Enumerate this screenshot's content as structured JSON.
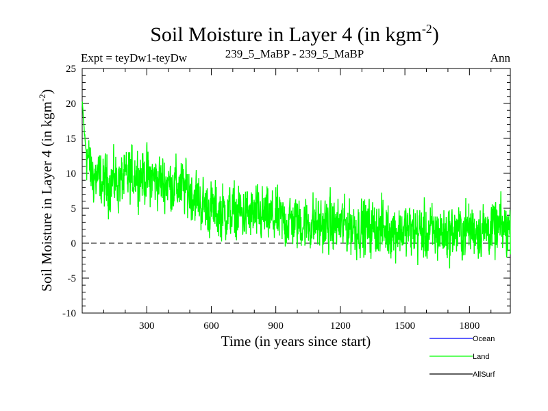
{
  "chart_data": {
    "type": "line",
    "title_main": "Soil Moisture in Layer 4 (in kgm",
    "title_sup": "-2",
    "title_close": ")",
    "expt_label": "Expt = teyDw1-teyDw",
    "subtitle": "239_5_MaBP - 239_5_MaBP",
    "season": "Ann",
    "xlabel": "Time (in years since start)",
    "ylabel_main": "Soil Moisture in Layer 4 (in kgm",
    "ylabel_sup": "-2",
    "ylabel_close": ")",
    "xlim": [
      0,
      1990
    ],
    "ylim": [
      -10,
      25
    ],
    "x_ticks": [
      300,
      600,
      900,
      1200,
      1500,
      1800
    ],
    "x_tick_labels": [
      "300",
      "600",
      "900",
      "1200",
      "1500",
      "1800"
    ],
    "y_ticks": [
      -10,
      -5,
      0,
      5,
      10,
      15,
      20,
      25
    ],
    "y_tick_labels": [
      "-10",
      "-5",
      "0",
      "5",
      "10",
      "15",
      "20",
      "25"
    ],
    "zero_line": 0,
    "trend_points": [
      [
        0,
        20
      ],
      [
        15,
        14
      ],
      [
        40,
        10
      ],
      [
        100,
        8.5
      ],
      [
        200,
        9
      ],
      [
        250,
        10
      ],
      [
        350,
        9
      ],
      [
        500,
        7.5
      ],
      [
        560,
        5.5
      ],
      [
        620,
        4.5
      ],
      [
        800,
        4
      ],
      [
        1000,
        3
      ],
      [
        1200,
        2.5
      ],
      [
        1400,
        2
      ],
      [
        1600,
        1.5
      ],
      [
        1700,
        1.5
      ],
      [
        1800,
        2
      ],
      [
        1990,
        2
      ]
    ],
    "noise_amplitude": 2.8,
    "series": [
      {
        "name": "Ocean",
        "color": "#0000ff"
      },
      {
        "name": "Land",
        "color": "#00ff00"
      },
      {
        "name": "AllSurf",
        "color": "#000000"
      }
    ]
  }
}
